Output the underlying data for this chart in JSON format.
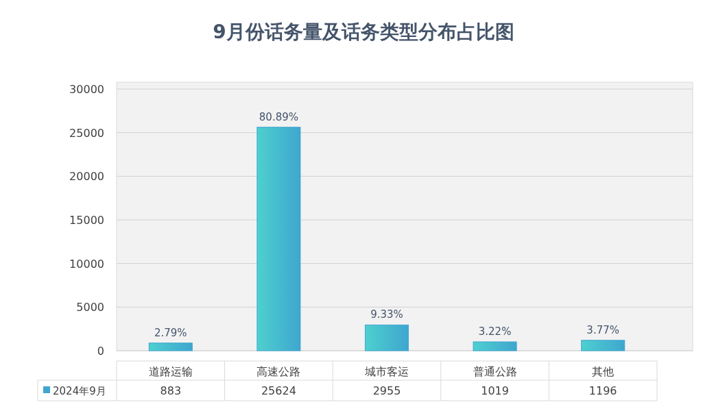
{
  "chart_data": {
    "type": "bar",
    "title": "9月份话务量及话务类型分布占比图",
    "categories": [
      "道路运输",
      "高速公路",
      "城市客运",
      "普通公路",
      "其他"
    ],
    "series": [
      {
        "name": "2024年9月",
        "color": "#3fa6cf",
        "values": [
          883,
          25624,
          2955,
          1019,
          1196
        ]
      }
    ],
    "ylim": [
      0,
      30000
    ],
    "yticks": [
      0,
      5000,
      10000,
      15000,
      20000,
      25000,
      30000
    ],
    "grid": "y",
    "legend": "bottom",
    "data_labels": true,
    "annotations": [
      {
        "text": "2.79%",
        "x": "道路运输",
        "y": 883
      },
      {
        "text": "80.89%",
        "x": "高速公路",
        "y": 25624
      },
      {
        "text": "9.33%",
        "x": "城市客运",
        "y": 2955
      },
      {
        "text": "3.22%",
        "x": "普通公路",
        "y": 1019
      },
      {
        "text": "3.77%",
        "x": "其他",
        "y": 1196
      }
    ]
  }
}
